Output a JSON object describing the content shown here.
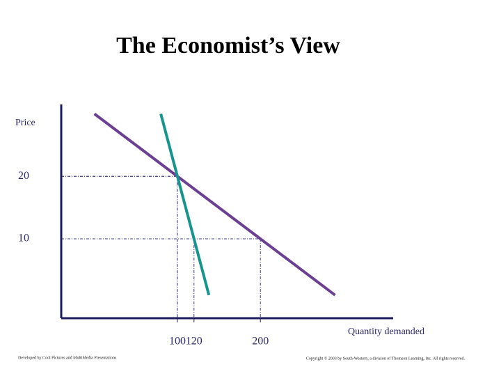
{
  "chart_data": {
    "type": "line",
    "title": "The Economist’s View",
    "y_label": "Price",
    "x_label": "Quantity demanded",
    "series": [
      {
        "color": "#6b3f92",
        "x": [
          0,
          100,
          200,
          290
        ],
        "values": [
          30,
          20,
          10,
          1
        ]
      },
      {
        "color": "#16958f",
        "x": [
          80,
          100,
          120,
          138
        ],
        "values": [
          30,
          20,
          10,
          1
        ]
      }
    ],
    "xlim": [
      -40,
      360
    ],
    "ylim": [
      -2.7,
      31.5
    ],
    "xticks": [
      100,
      120,
      200
    ],
    "yticks": [
      10,
      20
    ],
    "footer_left": "Developed by Cool Pictures and MultiMedia Presentations",
    "footer_right": "Copyright © 2003 by South-Western, a division of Thomson Learning, Inc. All rights reserved."
  }
}
